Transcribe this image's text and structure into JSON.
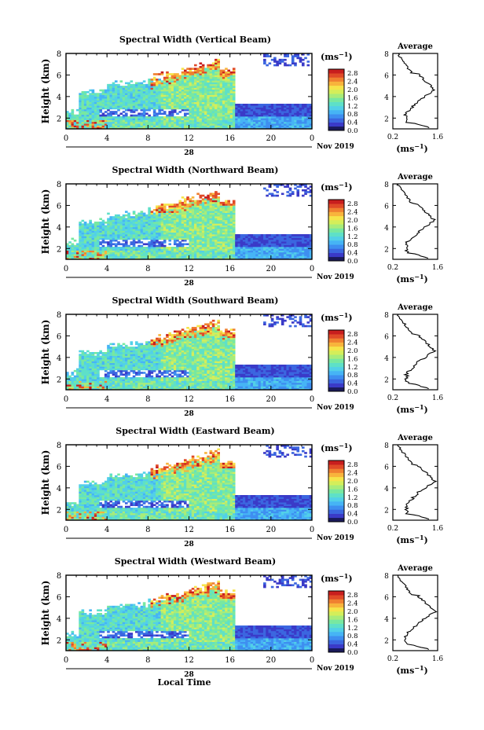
{
  "figure": {
    "xlabel": "Local Time",
    "month_label": "Nov 2019",
    "date_label": "28",
    "ylabel": "Height (km)",
    "cbar_unit": "(ms",
    "cbar_unit_exp": "−1",
    "avg_title": "Average",
    "avg_xlabel": "(ms",
    "avg_xlabel_exp": "−1"
  },
  "colors": {
    "scale": [
      "#1a1a5a",
      "#3a3ac8",
      "#3b66e0",
      "#3e8ef0",
      "#46b4f5",
      "#52d0e8",
      "#5ee0c8",
      "#78e8a0",
      "#a8ec7a",
      "#d4ee5a",
      "#f6e44a",
      "#f8b43c",
      "#f08030",
      "#e04a28",
      "#c81e1e"
    ],
    "axis": "#000000",
    "blank": "#ffffff"
  },
  "chart_data": [
    {
      "type": "heatmap",
      "title": "Spectral Width (Vertical Beam)",
      "x_ticks": [
        "0",
        "4",
        "8",
        "12",
        "16",
        "20",
        "0"
      ],
      "xlim": [
        0,
        24
      ],
      "y_ticks": [
        "2",
        "4",
        "6",
        "8"
      ],
      "ylim": [
        1,
        8
      ],
      "colorbar": {
        "ticks": [
          "0.0",
          "0.4",
          "0.8",
          "1.2",
          "1.6",
          "2.0",
          "2.4",
          "2.8"
        ],
        "range": [
          0,
          3.0
        ]
      },
      "average": {
        "x_ticks": [
          "0.2",
          "1.6"
        ],
        "xlim": [
          0.2,
          1.6
        ],
        "ylim": [
          1,
          8
        ],
        "y_ticks": [
          "2",
          "4",
          "6",
          "8"
        ]
      }
    },
    {
      "type": "heatmap",
      "title": "Spectral Width (Northward Beam)",
      "x_ticks": [
        "0",
        "4",
        "8",
        "12",
        "16",
        "20",
        "0"
      ],
      "xlim": [
        0,
        24
      ],
      "y_ticks": [
        "2",
        "4",
        "6",
        "8"
      ],
      "ylim": [
        1,
        8
      ],
      "colorbar": {
        "ticks": [
          "0.0",
          "0.4",
          "0.8",
          "1.2",
          "1.6",
          "2.0",
          "2.4",
          "2.8"
        ],
        "range": [
          0,
          3.0
        ]
      },
      "average": {
        "x_ticks": [
          "0.2",
          "1.6"
        ],
        "xlim": [
          0.2,
          1.6
        ],
        "ylim": [
          1,
          8
        ],
        "y_ticks": [
          "2",
          "4",
          "6",
          "8"
        ]
      }
    },
    {
      "type": "heatmap",
      "title": "Spectral Width (Southward Beam)",
      "x_ticks": [
        "0",
        "4",
        "8",
        "12",
        "16",
        "20",
        "0"
      ],
      "xlim": [
        0,
        24
      ],
      "y_ticks": [
        "2",
        "4",
        "6",
        "8"
      ],
      "ylim": [
        1,
        8
      ],
      "colorbar": {
        "ticks": [
          "0.0",
          "0.4",
          "0.8",
          "1.2",
          "1.6",
          "2.0",
          "2.4",
          "2.8"
        ],
        "range": [
          0,
          3.0
        ]
      },
      "average": {
        "x_ticks": [
          "0.2",
          "1.6"
        ],
        "xlim": [
          0.2,
          1.6
        ],
        "ylim": [
          1,
          8
        ],
        "y_ticks": [
          "2",
          "4",
          "6",
          "8"
        ]
      }
    },
    {
      "type": "heatmap",
      "title": "Spectral Width (Eastward Beam)",
      "x_ticks": [
        "0",
        "4",
        "8",
        "12",
        "16",
        "20",
        "0"
      ],
      "xlim": [
        0,
        24
      ],
      "y_ticks": [
        "2",
        "4",
        "6",
        "8"
      ],
      "ylim": [
        1,
        8
      ],
      "colorbar": {
        "ticks": [
          "0.0",
          "0.4",
          "0.8",
          "1.2",
          "1.6",
          "2.0",
          "2.4",
          "2.8"
        ],
        "range": [
          0,
          3.0
        ]
      },
      "average": {
        "x_ticks": [
          "0.2",
          "1.6"
        ],
        "xlim": [
          0.2,
          1.6
        ],
        "ylim": [
          1,
          8
        ],
        "y_ticks": [
          "2",
          "4",
          "6",
          "8"
        ]
      }
    },
    {
      "type": "heatmap",
      "title": "Spectral Width (Westward Beam)",
      "x_ticks": [
        "0",
        "4",
        "8",
        "12",
        "16",
        "20",
        "0"
      ],
      "xlim": [
        0,
        24
      ],
      "y_ticks": [
        "2",
        "4",
        "6",
        "8"
      ],
      "ylim": [
        1,
        8
      ],
      "colorbar": {
        "ticks": [
          "0.0",
          "0.4",
          "0.8",
          "1.2",
          "1.6",
          "2.0",
          "2.4",
          "2.8"
        ],
        "range": [
          0,
          3.0
        ]
      },
      "average": {
        "x_ticks": [
          "0.2",
          "1.6"
        ],
        "xlim": [
          0.2,
          1.6
        ],
        "ylim": [
          1,
          8
        ],
        "y_ticks": [
          "2",
          "4",
          "6",
          "8"
        ]
      }
    }
  ]
}
